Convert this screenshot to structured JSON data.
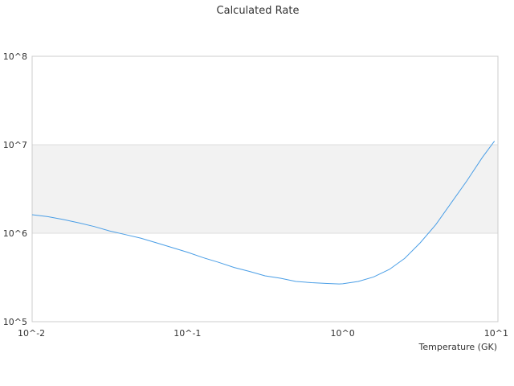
{
  "chart_data": {
    "type": "line",
    "title": "Calculated Rate",
    "xlabel": "Temperature (GK)",
    "ylabel": "",
    "x_scale": "log",
    "y_scale": "log",
    "xlim": [
      0.01,
      10
    ],
    "ylim": [
      100000,
      100000000
    ],
    "x_ticks": [
      {
        "value": 0.01,
        "label": "10^-2"
      },
      {
        "value": 0.1,
        "label": "10^-1"
      },
      {
        "value": 1,
        "label": "10^0"
      },
      {
        "value": 10,
        "label": "10^1"
      }
    ],
    "y_ticks": [
      {
        "value": 100000,
        "label": "10^5"
      },
      {
        "value": 1000000,
        "label": "10^6"
      },
      {
        "value": 10000000,
        "label": "10^7"
      },
      {
        "value": 100000000,
        "label": "10^8"
      }
    ],
    "grid": true,
    "legend": "none",
    "colors": {
      "line": "#4a9ee6",
      "band": "#f2f2f2",
      "grid": "#dddddd",
      "axis": "#cccccc"
    },
    "series": [
      {
        "x": [
          0.01,
          0.0126,
          0.0158,
          0.02,
          0.0251,
          0.0316,
          0.0398,
          0.05,
          0.063,
          0.0794,
          0.1,
          0.126,
          0.158,
          0.2,
          0.251,
          0.316,
          0.398,
          0.5,
          0.63,
          0.794,
          0.95,
          1.0,
          1.26,
          1.58,
          2.0,
          2.51,
          3.16,
          3.98,
          5.0,
          6.3,
          7.94,
          9.5
        ],
        "y": [
          1620000,
          1540000,
          1430000,
          1310000,
          1190000,
          1060000,
          965000,
          880000,
          780000,
          690000,
          610000,
          530000,
          470000,
          410000,
          370000,
          330000,
          310000,
          285000,
          276000,
          270000,
          267000,
          268000,
          285000,
          320000,
          390000,
          520000,
          780000,
          1250000,
          2200000,
          3900000,
          7200000,
          11000000
        ]
      }
    ]
  }
}
